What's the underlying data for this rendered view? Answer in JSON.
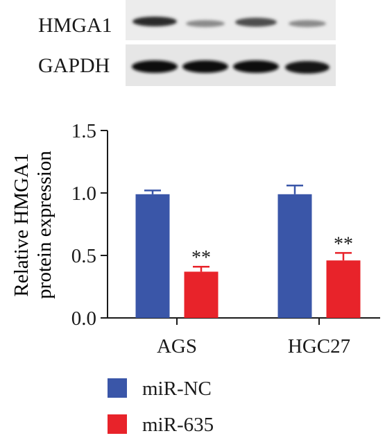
{
  "blot": {
    "labels": [
      "HMGA1",
      "GAPDH"
    ]
  },
  "chart_data": {
    "type": "bar",
    "categories": [
      "AGS",
      "HGC27"
    ],
    "series": [
      {
        "name": "miR-NC",
        "values": [
          0.99,
          0.99
        ],
        "errors": [
          0.03,
          0.07
        ],
        "color": "#3a56a8"
      },
      {
        "name": "miR-635",
        "values": [
          0.37,
          0.46
        ],
        "errors": [
          0.04,
          0.06
        ],
        "color": "#e8232a"
      }
    ],
    "annotations": [
      "**",
      "**"
    ],
    "ylabel_lines": [
      "Relative HMGA1",
      "protein expression"
    ],
    "ylim": [
      0,
      1.5
    ],
    "yticks": [
      "0.0",
      "0.5",
      "1.0",
      "1.5"
    ],
    "xlabel": "",
    "title": "",
    "legend": "bottom"
  }
}
